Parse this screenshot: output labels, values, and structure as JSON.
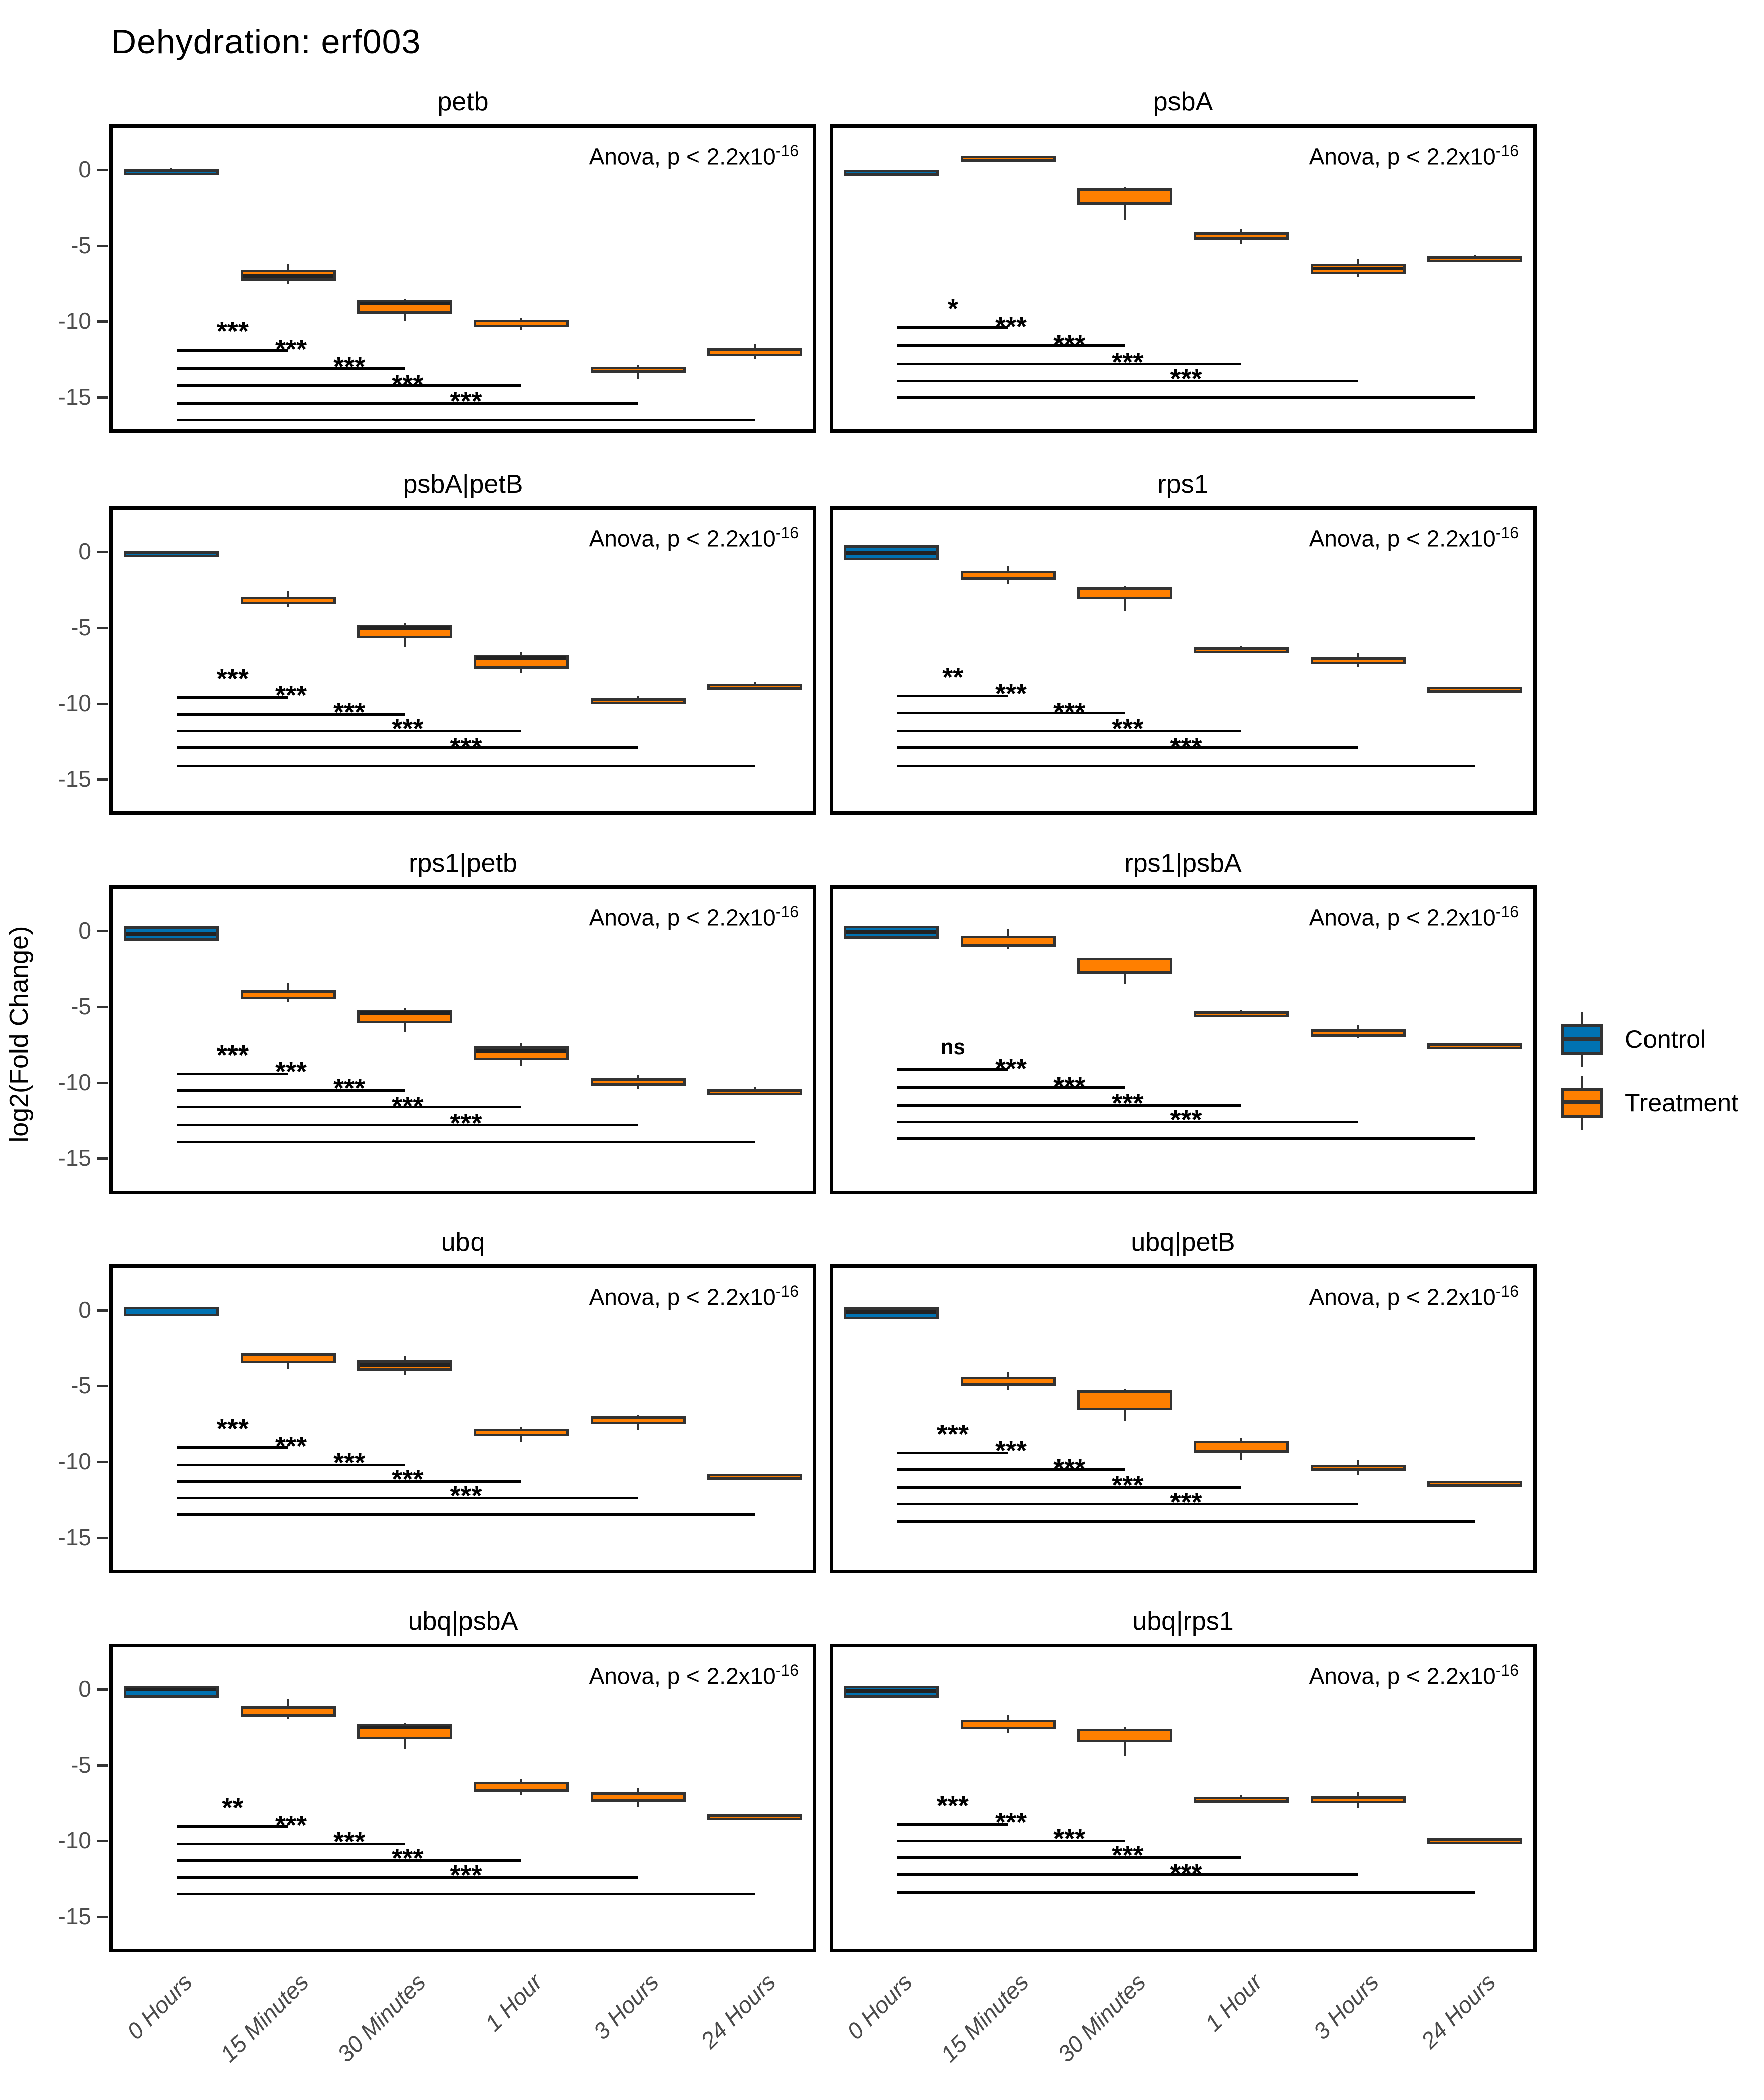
{
  "title": "Dehydration: erf003",
  "ylabel": "log2(Fold Change)",
  "anova_label": "Anova, p < 2.2x10",
  "anova_exponent": "-16",
  "legend": {
    "items": [
      {
        "label": "Control",
        "color": "#0072B2"
      },
      {
        "label": "Treatment",
        "color": "#FF7F00"
      }
    ]
  },
  "colors": {
    "control": "#0072B2",
    "treatment": "#FF7F00",
    "box_border": "#333333",
    "median": "#222222",
    "panel_border": "#000000",
    "tick_text": "#4d4d4d",
    "xlabel_text": "#4a4a4a"
  },
  "chart_data": {
    "type": "boxplot",
    "title": "Dehydration: erf003",
    "ylabel": "log2(Fold Change)",
    "x_categories": [
      "0 Hours",
      "15 Minutes",
      "30 Minutes",
      "1 Hour",
      "3 Hours",
      "24 Hours"
    ],
    "y_ticks": [
      0,
      -5,
      -10,
      -15
    ],
    "ylim": [
      -17.6,
      2.8
    ],
    "legend_position": "right",
    "groups_by_category": [
      "Control",
      "Treatment",
      "Treatment",
      "Treatment",
      "Treatment",
      "Treatment"
    ],
    "anova_text": "Anova, p < 2.2x10^-16",
    "panels": [
      {
        "title": "petb",
        "boxes": [
          {
            "cat": "0 Hours",
            "group": "Control",
            "q1": -0.2,
            "q3": 0.05,
            "med": -0.05,
            "lo": -0.3,
            "hi": 0.15
          },
          {
            "cat": "15 Minutes",
            "group": "Treatment",
            "q1": -7.3,
            "q3": -6.6,
            "med": -7.0,
            "lo": -7.5,
            "hi": -6.2
          },
          {
            "cat": "30 Minutes",
            "group": "Treatment",
            "q1": -9.5,
            "q3": -8.6,
            "med": -8.8,
            "lo": -10.0,
            "hi": -8.5
          },
          {
            "cat": "1 Hour",
            "group": "Treatment",
            "q1": -10.4,
            "q3": -9.9,
            "med": -10.1,
            "lo": -10.6,
            "hi": -9.8
          },
          {
            "cat": "3 Hours",
            "group": "Treatment",
            "q1": -13.4,
            "q3": -13.0,
            "med": -13.2,
            "lo": -13.8,
            "hi": -12.9
          },
          {
            "cat": "24 Hours",
            "group": "Treatment",
            "q1": -12.3,
            "q3": -11.8,
            "med": -12.0,
            "lo": -12.5,
            "hi": -11.5
          }
        ],
        "significance": {
          "labels": [
            "***",
            "***",
            "***",
            "***",
            "***"
          ],
          "y": [
            -11.9,
            -13.1,
            -14.2,
            -15.4,
            -16.5
          ]
        }
      },
      {
        "title": "psbA",
        "boxes": [
          {
            "cat": "0 Hours",
            "group": "Control",
            "q1": -0.2,
            "q3": 0.0,
            "med": -0.1,
            "lo": -0.25,
            "hi": 0.05
          },
          {
            "cat": "15 Minutes",
            "group": "Treatment",
            "q1": 0.65,
            "q3": 0.95,
            "med": 0.8,
            "lo": 0.6,
            "hi": 1.0
          },
          {
            "cat": "30 Minutes",
            "group": "Treatment",
            "q1": -2.3,
            "q3": -1.2,
            "med": -1.35,
            "lo": -3.3,
            "hi": -1.1
          },
          {
            "cat": "1 Hour",
            "group": "Treatment",
            "q1": -4.6,
            "q3": -4.1,
            "med": -4.3,
            "lo": -4.9,
            "hi": -3.9
          },
          {
            "cat": "3 Hours",
            "group": "Treatment",
            "q1": -6.9,
            "q3": -6.2,
            "med": -6.5,
            "lo": -7.1,
            "hi": -5.9
          },
          {
            "cat": "24 Hours",
            "group": "Treatment",
            "q1": -6.0,
            "q3": -5.7,
            "med": -5.85,
            "lo": -6.05,
            "hi": -5.6
          }
        ],
        "significance": {
          "labels": [
            "*",
            "***",
            "***",
            "***",
            "***"
          ],
          "y": [
            -10.4,
            -11.6,
            -12.8,
            -13.9,
            -15.0
          ]
        }
      },
      {
        "title": "psbA|petB",
        "boxes": [
          {
            "cat": "0 Hours",
            "group": "Control",
            "q1": -0.2,
            "q3": 0.05,
            "med": -0.05,
            "lo": -0.3,
            "hi": 0.1
          },
          {
            "cat": "15 Minutes",
            "group": "Treatment",
            "q1": -3.45,
            "q3": -2.95,
            "med": -3.3,
            "lo": -3.6,
            "hi": -2.55
          },
          {
            "cat": "30 Minutes",
            "group": "Treatment",
            "q1": -5.7,
            "q3": -4.8,
            "med": -5.0,
            "lo": -6.3,
            "hi": -4.7
          },
          {
            "cat": "1 Hour",
            "group": "Treatment",
            "q1": -7.7,
            "q3": -6.8,
            "med": -7.0,
            "lo": -8.0,
            "hi": -6.6
          },
          {
            "cat": "3 Hours",
            "group": "Treatment",
            "q1": -10.0,
            "q3": -9.65,
            "med": -9.8,
            "lo": -10.1,
            "hi": -9.55
          },
          {
            "cat": "24 Hours",
            "group": "Treatment",
            "q1": -9.0,
            "q3": -8.7,
            "med": -8.85,
            "lo": -9.1,
            "hi": -8.6
          }
        ],
        "significance": {
          "labels": [
            "***",
            "***",
            "***",
            "***",
            "***"
          ],
          "y": [
            -9.6,
            -10.7,
            -11.8,
            -12.9,
            -14.1
          ]
        }
      },
      {
        "title": "rps1",
        "boxes": [
          {
            "cat": "0 Hours",
            "group": "Control",
            "q1": -0.55,
            "q3": 0.45,
            "med": -0.05,
            "lo": -0.6,
            "hi": 0.5
          },
          {
            "cat": "15 Minutes",
            "group": "Treatment",
            "q1": -1.85,
            "q3": -1.25,
            "med": -1.5,
            "lo": -2.1,
            "hi": -0.95
          },
          {
            "cat": "30 Minutes",
            "group": "Treatment",
            "q1": -3.1,
            "q3": -2.3,
            "med": -2.45,
            "lo": -3.9,
            "hi": -2.2
          },
          {
            "cat": "1 Hour",
            "group": "Treatment",
            "q1": -6.55,
            "q3": -6.3,
            "med": -6.45,
            "lo": -6.6,
            "hi": -6.2
          },
          {
            "cat": "3 Hours",
            "group": "Treatment",
            "q1": -7.4,
            "q3": -6.95,
            "med": -7.1,
            "lo": -7.6,
            "hi": -6.7
          },
          {
            "cat": "24 Hours",
            "group": "Treatment",
            "q1": -9.1,
            "q3": -8.9,
            "med": -9.0,
            "lo": -9.15,
            "hi": -8.85
          }
        ],
        "significance": {
          "labels": [
            "**",
            "***",
            "***",
            "***",
            "***"
          ],
          "y": [
            -9.5,
            -10.6,
            -11.8,
            -12.9,
            -14.1
          ]
        }
      },
      {
        "title": "rps1|petb",
        "boxes": [
          {
            "cat": "0 Hours",
            "group": "Control",
            "q1": -0.6,
            "q3": 0.3,
            "med": -0.15,
            "lo": -0.65,
            "hi": 0.35
          },
          {
            "cat": "15 Minutes",
            "group": "Treatment",
            "q1": -4.5,
            "q3": -3.9,
            "med": -4.2,
            "lo": -4.65,
            "hi": -3.4
          },
          {
            "cat": "30 Minutes",
            "group": "Treatment",
            "q1": -6.1,
            "q3": -5.2,
            "med": -5.4,
            "lo": -6.7,
            "hi": -5.1
          },
          {
            "cat": "1 Hour",
            "group": "Treatment",
            "q1": -8.5,
            "q3": -7.6,
            "med": -7.9,
            "lo": -8.9,
            "hi": -7.4
          },
          {
            "cat": "3 Hours",
            "group": "Treatment",
            "q1": -10.2,
            "q3": -9.7,
            "med": -9.85,
            "lo": -10.45,
            "hi": -9.5
          },
          {
            "cat": "24 Hours",
            "group": "Treatment",
            "q1": -10.7,
            "q3": -10.45,
            "med": -10.55,
            "lo": -10.8,
            "hi": -10.3
          }
        ],
        "significance": {
          "labels": [
            "***",
            "***",
            "***",
            "***",
            "***"
          ],
          "y": [
            -9.4,
            -10.5,
            -11.6,
            -12.8,
            -13.9
          ]
        }
      },
      {
        "title": "rps1|psbA",
        "boxes": [
          {
            "cat": "0 Hours",
            "group": "Control",
            "q1": -0.5,
            "q3": 0.35,
            "med": -0.05,
            "lo": -0.55,
            "hi": 0.4
          },
          {
            "cat": "15 Minutes",
            "group": "Treatment",
            "q1": -1.0,
            "q3": -0.3,
            "med": -0.85,
            "lo": -1.15,
            "hi": 0.1
          },
          {
            "cat": "30 Minutes",
            "group": "Treatment",
            "q1": -2.8,
            "q3": -1.75,
            "med": -1.9,
            "lo": -3.5,
            "hi": -1.7
          },
          {
            "cat": "1 Hour",
            "group": "Treatment",
            "q1": -5.6,
            "q3": -5.3,
            "med": -5.45,
            "lo": -5.65,
            "hi": -5.2
          },
          {
            "cat": "3 Hours",
            "group": "Treatment",
            "q1": -7.0,
            "q3": -6.5,
            "med": -6.7,
            "lo": -7.1,
            "hi": -6.2
          },
          {
            "cat": "24 Hours",
            "group": "Treatment",
            "q1": -7.6,
            "q3": -7.4,
            "med": -7.5,
            "lo": -7.65,
            "hi": -7.35
          }
        ],
        "significance": {
          "labels": [
            "ns",
            "***",
            "***",
            "***",
            "***"
          ],
          "y": [
            -9.1,
            -10.3,
            -11.5,
            -12.6,
            -13.7
          ]
        }
      },
      {
        "title": "ubq",
        "boxes": [
          {
            "cat": "0 Hours",
            "group": "Control",
            "q1": -0.4,
            "q3": 0.25,
            "med": -0.05,
            "lo": -0.45,
            "hi": 0.3
          },
          {
            "cat": "15 Minutes",
            "group": "Treatment",
            "q1": -3.5,
            "q3": -2.85,
            "med": -3.0,
            "lo": -3.9,
            "hi": -2.8
          },
          {
            "cat": "30 Minutes",
            "group": "Treatment",
            "q1": -4.0,
            "q3": -3.3,
            "med": -3.6,
            "lo": -4.3,
            "hi": -3.0
          },
          {
            "cat": "1 Hour",
            "group": "Treatment",
            "q1": -8.3,
            "q3": -7.8,
            "med": -8.0,
            "lo": -8.7,
            "hi": -7.7
          },
          {
            "cat": "3 Hours",
            "group": "Treatment",
            "q1": -7.5,
            "q3": -7.0,
            "med": -7.1,
            "lo": -7.9,
            "hi": -6.9
          },
          {
            "cat": "24 Hours",
            "group": "Treatment",
            "q1": -11.0,
            "q3": -10.8,
            "med": -10.9,
            "lo": -11.05,
            "hi": -10.75
          }
        ],
        "significance": {
          "labels": [
            "***",
            "***",
            "***",
            "***",
            "***"
          ],
          "y": [
            -9.05,
            -10.2,
            -11.3,
            -12.4,
            -13.5
          ]
        }
      },
      {
        "title": "ubq|petB",
        "boxes": [
          {
            "cat": "0 Hours",
            "group": "Control",
            "q1": -0.6,
            "q3": 0.2,
            "med": -0.1,
            "lo": -0.65,
            "hi": 0.25
          },
          {
            "cat": "15 Minutes",
            "group": "Treatment",
            "q1": -5.0,
            "q3": -4.4,
            "med": -4.7,
            "lo": -5.3,
            "hi": -4.1
          },
          {
            "cat": "30 Minutes",
            "group": "Treatment",
            "q1": -6.6,
            "q3": -5.3,
            "med": -5.45,
            "lo": -7.3,
            "hi": -5.2
          },
          {
            "cat": "1 Hour",
            "group": "Treatment",
            "q1": -9.4,
            "q3": -8.6,
            "med": -8.75,
            "lo": -9.9,
            "hi": -8.4
          },
          {
            "cat": "3 Hours",
            "group": "Treatment",
            "q1": -10.6,
            "q3": -10.2,
            "med": -10.35,
            "lo": -10.9,
            "hi": -9.9
          },
          {
            "cat": "24 Hours",
            "group": "Treatment",
            "q1": -11.45,
            "q3": -11.25,
            "med": -11.35,
            "lo": -11.5,
            "hi": -11.2
          }
        ],
        "significance": {
          "labels": [
            "***",
            "***",
            "***",
            "***",
            "***"
          ],
          "y": [
            -9.4,
            -10.5,
            -11.7,
            -12.8,
            -13.9
          ]
        }
      },
      {
        "title": "ubq|psbA",
        "boxes": [
          {
            "cat": "0 Hours",
            "group": "Control",
            "q1": -0.55,
            "q3": 0.25,
            "med": 0.0,
            "lo": -0.6,
            "hi": 0.3
          },
          {
            "cat": "15 Minutes",
            "group": "Treatment",
            "q1": -1.8,
            "q3": -1.1,
            "med": -1.65,
            "lo": -1.95,
            "hi": -0.6
          },
          {
            "cat": "30 Minutes",
            "group": "Treatment",
            "q1": -3.3,
            "q3": -2.3,
            "med": -2.5,
            "lo": -3.95,
            "hi": -2.2
          },
          {
            "cat": "1 Hour",
            "group": "Treatment",
            "q1": -6.75,
            "q3": -6.1,
            "med": -6.3,
            "lo": -7.0,
            "hi": -5.9
          },
          {
            "cat": "3 Hours",
            "group": "Treatment",
            "q1": -7.4,
            "q3": -6.8,
            "med": -7.0,
            "lo": -7.75,
            "hi": -6.5
          },
          {
            "cat": "24 Hours",
            "group": "Treatment",
            "q1": -8.45,
            "q3": -8.25,
            "med": -8.35,
            "lo": -8.5,
            "hi": -8.2
          }
        ],
        "significance": {
          "labels": [
            "**",
            "***",
            "***",
            "***",
            "***"
          ],
          "y": [
            -9.05,
            -10.2,
            -11.3,
            -12.4,
            -13.5
          ]
        }
      },
      {
        "title": "ubq|rps1",
        "boxes": [
          {
            "cat": "0 Hours",
            "group": "Control",
            "q1": -0.55,
            "q3": 0.25,
            "med": -0.1,
            "lo": -0.6,
            "hi": 0.3
          },
          {
            "cat": "15 Minutes",
            "group": "Treatment",
            "q1": -2.65,
            "q3": -2.0,
            "med": -2.3,
            "lo": -2.9,
            "hi": -1.7
          },
          {
            "cat": "30 Minutes",
            "group": "Treatment",
            "q1": -3.5,
            "q3": -2.6,
            "med": -2.75,
            "lo": -4.4,
            "hi": -2.5
          },
          {
            "cat": "1 Hour",
            "group": "Treatment",
            "q1": -7.4,
            "q3": -7.1,
            "med": -7.25,
            "lo": -7.45,
            "hi": -7.0
          },
          {
            "cat": "3 Hours",
            "group": "Treatment",
            "q1": -7.5,
            "q3": -7.05,
            "med": -7.2,
            "lo": -7.8,
            "hi": -6.8
          },
          {
            "cat": "24 Hours",
            "group": "Treatment",
            "q1": -10.05,
            "q3": -9.85,
            "med": -9.95,
            "lo": -10.1,
            "hi": -9.8
          }
        ],
        "significance": {
          "labels": [
            "***",
            "***",
            "***",
            "***",
            "***"
          ],
          "y": [
            -8.9,
            -10.0,
            -11.1,
            -12.2,
            -13.4
          ]
        }
      }
    ]
  }
}
